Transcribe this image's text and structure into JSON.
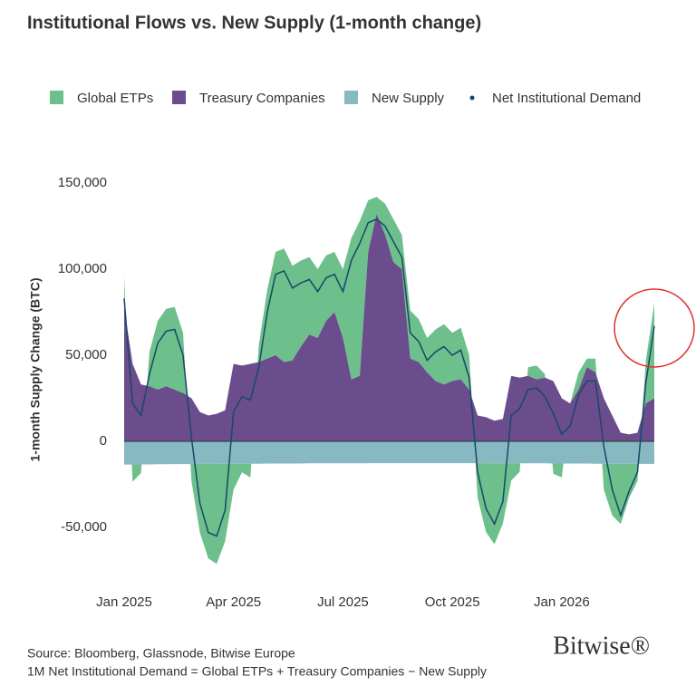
{
  "chart_data": {
    "type": "stacked-area",
    "title": "Institutional Flows vs. New Supply (1-month change)",
    "y_label": "1-month Supply Change (BTC)",
    "categories": [
      "Jan 2025",
      null,
      null,
      null,
      null,
      null,
      null,
      null,
      null,
      null,
      null,
      null,
      null,
      "Apr 2025",
      null,
      null,
      null,
      null,
      null,
      null,
      null,
      null,
      null,
      null,
      null,
      null,
      "Jul 2025",
      null,
      null,
      null,
      null,
      null,
      null,
      null,
      null,
      null,
      null,
      null,
      null,
      "Oct 2025",
      null,
      null,
      null,
      null,
      null,
      null,
      null,
      null,
      null,
      null,
      null,
      null,
      "Jan 2026",
      null,
      null,
      null,
      null,
      null,
      null,
      null,
      null,
      null,
      null,
      null
    ],
    "series": [
      {
        "name": "Global ETPs",
        "color": "#6dbf8b",
        "kind": "area",
        "values": [
          18000,
          -10000,
          -5000,
          20000,
          40000,
          45000,
          48000,
          35000,
          -10000,
          -40000,
          -55000,
          -58000,
          -45000,
          -15000,
          -5000,
          -8000,
          10000,
          40000,
          60000,
          66000,
          55000,
          50000,
          45000,
          40000,
          38000,
          35000,
          40000,
          82000,
          90000,
          30000,
          10000,
          18000,
          25000,
          20000,
          28000,
          25000,
          20000,
          30000,
          35000,
          28000,
          30000,
          20000,
          -20000,
          -40000,
          -47000,
          -35000,
          -10000,
          -5000,
          5000,
          8000,
          2000,
          -6000,
          -8000,
          0,
          10000,
          5000,
          8000,
          -15000,
          -30000,
          -35000,
          -20000,
          -10000,
          25000,
          55000
        ]
      },
      {
        "name": "Treasury Companies",
        "color": "#6b4c8c",
        "kind": "area",
        "values": [
          78000,
          45000,
          33000,
          32000,
          30000,
          32000,
          30000,
          28000,
          25000,
          17000,
          15000,
          16000,
          18000,
          45000,
          44000,
          45000,
          46000,
          48000,
          50000,
          46000,
          47000,
          55000,
          62000,
          60000,
          70000,
          75000,
          60000,
          36000,
          38000,
          110000,
          132000,
          120000,
          104000,
          100000,
          48000,
          46000,
          40000,
          35000,
          33000,
          35000,
          36000,
          30000,
          15000,
          14000,
          12000,
          13000,
          38000,
          37000,
          38000,
          36000,
          37000,
          35000,
          25000,
          22000,
          30000,
          43000,
          40000,
          25000,
          15000,
          5000,
          4000,
          5000,
          22000,
          25000
        ]
      },
      {
        "name": "New Supply",
        "color": "#86b9c1",
        "kind": "area",
        "values": [
          -13500,
          -13500,
          -13400,
          -13400,
          -13300,
          -13300,
          -13200,
          -13200,
          -13200,
          -13100,
          -13100,
          -13100,
          -13000,
          -13000,
          -13000,
          -13000,
          -13000,
          -12900,
          -12900,
          -12900,
          -12900,
          -12900,
          -12800,
          -12800,
          -12800,
          -12800,
          -12800,
          -12800,
          -12800,
          -12700,
          -12700,
          -12700,
          -12700,
          -12700,
          -12700,
          -12700,
          -12700,
          -12700,
          -12700,
          -12700,
          -12700,
          -12700,
          -12700,
          -12800,
          -12800,
          -12800,
          -12800,
          -12800,
          -12800,
          -12800,
          -12800,
          -12900,
          -12900,
          -12900,
          -12900,
          -12900,
          -13000,
          -13000,
          -13000,
          -13000,
          -13000,
          -13100,
          -13100,
          -13100
        ]
      },
      {
        "name": "Net Institutional Demand",
        "color": "#17486a",
        "kind": "line",
        "values": [
          83000,
          22000,
          15000,
          39000,
          57000,
          64000,
          65000,
          50000,
          2000,
          -36000,
          -53000,
          -55000,
          -40000,
          17000,
          26000,
          24000,
          43000,
          75000,
          97000,
          99000,
          89000,
          92000,
          94000,
          87000,
          95000,
          97000,
          87000,
          105000,
          115000,
          127000,
          129000,
          125000,
          116000,
          107000,
          63000,
          58000,
          47000,
          52000,
          55000,
          50000,
          53000,
          37000,
          -18000,
          -39000,
          -48000,
          -35000,
          15000,
          19000,
          30000,
          31000,
          26000,
          16000,
          4000,
          9000,
          27000,
          35000,
          35000,
          -3000,
          -28000,
          -43000,
          -29000,
          -18000,
          34000,
          67000
        ]
      }
    ],
    "ylim": [
      -75000,
      165000
    ],
    "yticks": [
      {
        "value": -50000,
        "label": "-50,000"
      },
      0,
      {
        "value": 50000,
        "label": "50,000"
      },
      {
        "value": 100000,
        "label": "100,000"
      },
      {
        "value": 150000,
        "label": "150,000"
      }
    ],
    "grid": false,
    "legend": "top",
    "source": "Source: Bloomberg, Glassnode, Bitwise Europe",
    "note": "1M Net Institutional Demand = Global ETPs + Treasury Companies − New Supply",
    "logo": "Bitwise®"
  }
}
